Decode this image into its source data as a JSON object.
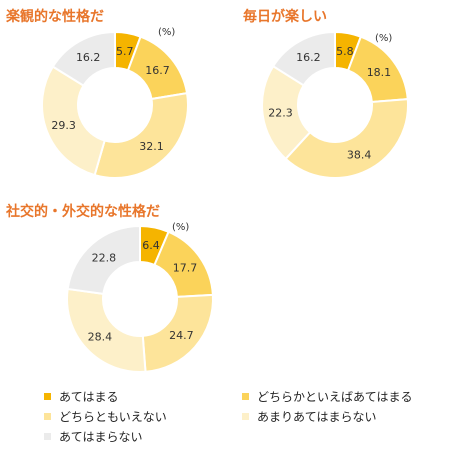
{
  "legend": {
    "items": [
      {
        "label": "あてはまる",
        "color": "#f5b400"
      },
      {
        "label": "どちらかといえばあてはまる",
        "color": "#fbd35a"
      },
      {
        "label": "どちらともいえない",
        "color": "#fde49a"
      },
      {
        "label": "あまりあてはまらない",
        "color": "#fdf0c9"
      },
      {
        "label": "あてはまらない",
        "color": "#ebebeb"
      }
    ]
  },
  "chart_data": [
    {
      "type": "pie",
      "title": "楽観的な性格だ",
      "unit": "(%)",
      "categories": [
        "あてはまる",
        "どちらかといえばあてはまる",
        "どちらともいえない",
        "あまりあてはまらない",
        "あてはまらない"
      ],
      "values": [
        5.7,
        16.7,
        32.1,
        29.3,
        16.2
      ],
      "value_labels": [
        "5.7",
        "16.7",
        "32.1",
        "29.3",
        "16.2"
      ]
    },
    {
      "type": "pie",
      "title": "毎日が楽しい",
      "unit": "(%)",
      "categories": [
        "あてはまる",
        "どちらかといえばあてはまる",
        "どちらともいえない",
        "あまりあてはまらない",
        "あてはまらない"
      ],
      "values": [
        5.8,
        18.1,
        38.4,
        22.3,
        16.2
      ],
      "value_labels": [
        "5.8",
        "18.1",
        "38.4",
        "22.3",
        "16.2"
      ]
    },
    {
      "type": "pie",
      "title": "社交的・外交的な性格だ",
      "unit": "(%)",
      "categories": [
        "あてはまる",
        "どちらかといえばあてはまる",
        "どちらともいえない",
        "あまりあてはまらない",
        "あてはまらない"
      ],
      "values": [
        6.4,
        17.7,
        24.7,
        28.4,
        22.8
      ],
      "value_labels": [
        "6.4",
        "17.7",
        "24.7",
        "28.4",
        "22.8"
      ]
    }
  ]
}
